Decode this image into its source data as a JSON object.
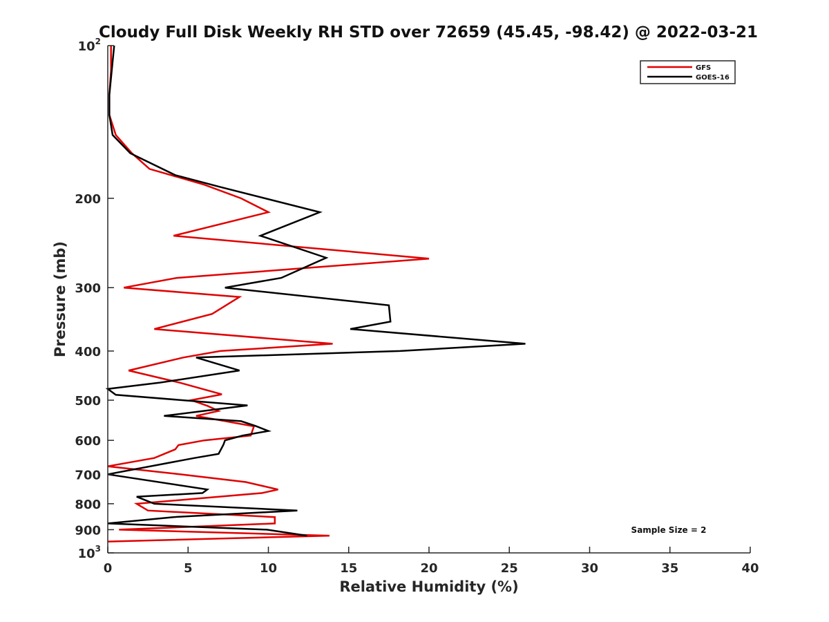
{
  "chart_data": {
    "type": "line",
    "title": "Cloudy Full Disk Weekly RH STD over 72659 (45.45, -98.42) @ 2022-03-21",
    "xlabel": "Relative Humidity (%)",
    "ylabel": "Pressure (mb)",
    "xlim": [
      0,
      40
    ],
    "ylim": [
      100,
      1000
    ],
    "y_scale": "log",
    "y_reversed": true,
    "x_ticks": [
      "0",
      "5",
      "10",
      "15",
      "20",
      "25",
      "30",
      "35",
      "40"
    ],
    "y_ticks": [
      {
        "value": 100,
        "base": "10",
        "exp": "2"
      },
      {
        "value": 200,
        "label": "200"
      },
      {
        "value": 300,
        "label": "300"
      },
      {
        "value": 400,
        "label": "400"
      },
      {
        "value": 500,
        "label": "500"
      },
      {
        "value": 600,
        "label": "600"
      },
      {
        "value": 700,
        "label": "700"
      },
      {
        "value": 800,
        "label": "800"
      },
      {
        "value": 900,
        "label": "900"
      },
      {
        "value": 1000,
        "base": "10",
        "exp": "3"
      }
    ],
    "legend_position": "top-right",
    "annotation": "Sample Size = 2",
    "series": [
      {
        "name": "GFS",
        "color": "#e00000",
        "points": [
          [
            0.2,
            100
          ],
          [
            0.2,
            112
          ],
          [
            0.1,
            125
          ],
          [
            0.1,
            137
          ],
          [
            0.5,
            150
          ],
          [
            1.5,
            163
          ],
          [
            2.6,
            175
          ],
          [
            6.0,
            188
          ],
          [
            8.3,
            200
          ],
          [
            10.0,
            213
          ],
          [
            4.1,
            237
          ],
          [
            20.0,
            263
          ],
          [
            4.3,
            287
          ],
          [
            1.0,
            300
          ],
          [
            8.2,
            313
          ],
          [
            6.5,
            338
          ],
          [
            2.9,
            362
          ],
          [
            14.0,
            387
          ],
          [
            7.0,
            400
          ],
          [
            4.7,
            412
          ],
          [
            1.3,
            437
          ],
          [
            4.5,
            462
          ],
          [
            7.1,
            487
          ],
          [
            5.2,
            500
          ],
          [
            6.2,
            513
          ],
          [
            6.9,
            525
          ],
          [
            5.5,
            537
          ],
          [
            9.1,
            563
          ],
          [
            8.9,
            587
          ],
          [
            6.0,
            600
          ],
          [
            4.4,
            613
          ],
          [
            4.2,
            625
          ],
          [
            2.9,
            650
          ],
          [
            0.0,
            675
          ],
          [
            4.5,
            700
          ],
          [
            8.6,
            725
          ],
          [
            10.6,
            750
          ],
          [
            9.6,
            762
          ],
          [
            1.8,
            800
          ],
          [
            2.5,
            825
          ],
          [
            10.4,
            850
          ],
          [
            10.4,
            875
          ],
          [
            0.7,
            900
          ],
          [
            13.8,
            925
          ],
          [
            0.0,
            950
          ]
        ]
      },
      {
        "name": "GOES-16",
        "color": "#000000",
        "points": [
          [
            0.4,
            100
          ],
          [
            0.1,
            125
          ],
          [
            0.1,
            137
          ],
          [
            0.3,
            150
          ],
          [
            1.4,
            163
          ],
          [
            4.2,
            180
          ],
          [
            7.0,
            190
          ],
          [
            13.2,
            213
          ],
          [
            9.5,
            237
          ],
          [
            13.6,
            262
          ],
          [
            10.8,
            287
          ],
          [
            7.3,
            300
          ],
          [
            17.5,
            325
          ],
          [
            17.6,
            350
          ],
          [
            15.1,
            362
          ],
          [
            26.0,
            387
          ],
          [
            18.2,
            400
          ],
          [
            5.5,
            412
          ],
          [
            8.2,
            437
          ],
          [
            3.2,
            462
          ],
          [
            0.0,
            475
          ],
          [
            0.5,
            488
          ],
          [
            8.7,
            512
          ],
          [
            3.5,
            537
          ],
          [
            8.3,
            550
          ],
          [
            9.2,
            562
          ],
          [
            10.0,
            575
          ],
          [
            8.4,
            587
          ],
          [
            7.3,
            600
          ],
          [
            7.2,
            612
          ],
          [
            6.9,
            638
          ],
          [
            5.4,
            650
          ],
          [
            0.0,
            700
          ],
          [
            6.2,
            750
          ],
          [
            5.9,
            762
          ],
          [
            1.8,
            775
          ],
          [
            2.9,
            800
          ],
          [
            11.8,
            825
          ],
          [
            4.1,
            850
          ],
          [
            0.0,
            875
          ],
          [
            9.9,
            900
          ],
          [
            12.4,
            925
          ]
        ]
      }
    ]
  }
}
